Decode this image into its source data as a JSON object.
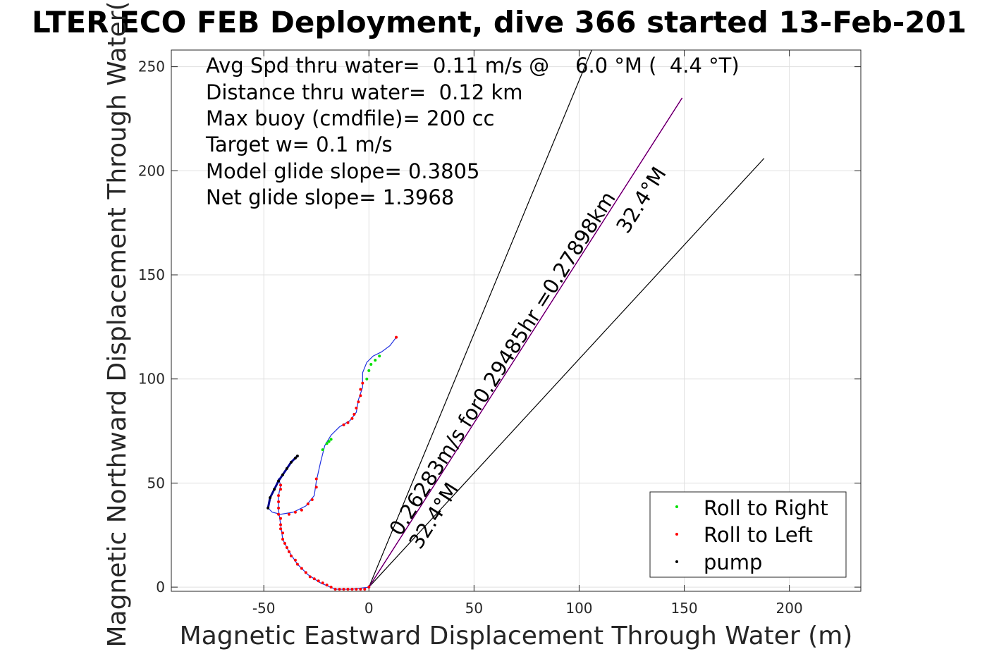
{
  "chart_data": {
    "type": "scatter",
    "title": "LTER ECO FEB Deployment, dive 366 started 13-Feb-201",
    "xlabel": "Magnetic Eastward Displacement Through Water (m)",
    "ylabel": "Magnetic Northward Displacement Through Water(",
    "xlim": [
      -94,
      234
    ],
    "ylim": [
      -2,
      258
    ],
    "xticks": [
      -50,
      0,
      50,
      100,
      150,
      200
    ],
    "yticks": [
      0,
      50,
      100,
      150,
      200,
      250
    ],
    "grid": true,
    "legend_position": "bottom-right",
    "annotations": [
      "Avg Spd thru water=  0.11 m/s @    6.0 °M (  4.4 °T)",
      "Distance thru water=  0.12 km",
      "Max buoy (cmdfile)= 200 cc",
      "Target w= 0.1 m/s",
      "Model glide slope= 0.3805",
      "Net glide slope= 1.3968"
    ],
    "rotated_labels": {
      "upper": "0.26283m/s for0.29485hr =0.27898km",
      "upper_heading": "32.4°M",
      "lower_heading": "32.4°M"
    },
    "reference_lines": {
      "origin": [
        0,
        0
      ],
      "heading_line_end": [
        149,
        235
      ],
      "left_bound_end": [
        106,
        258
      ],
      "right_bound_end": [
        188,
        206
      ]
    },
    "track": [
      [
        0,
        0
      ],
      [
        -8,
        -1
      ],
      [
        -16,
        -1
      ],
      [
        -23,
        2
      ],
      [
        -29,
        6
      ],
      [
        -34,
        11
      ],
      [
        -38,
        17
      ],
      [
        -41,
        23
      ],
      [
        -42,
        30
      ],
      [
        -43,
        37
      ],
      [
        -43,
        44
      ],
      [
        -42,
        49
      ],
      [
        -43,
        52
      ],
      [
        -45,
        47
      ],
      [
        -47,
        43
      ],
      [
        -48,
        38
      ],
      [
        -46,
        36
      ],
      [
        -42,
        35
      ],
      [
        -36,
        36
      ],
      [
        -30,
        39
      ],
      [
        -26,
        44
      ],
      [
        -25,
        51
      ],
      [
        -23,
        60
      ],
      [
        -21,
        68
      ],
      [
        -18,
        73
      ],
      [
        -14,
        77
      ],
      [
        -9,
        80
      ],
      [
        -6,
        84
      ],
      [
        -5,
        90
      ],
      [
        -3,
        96
      ],
      [
        -3,
        103
      ],
      [
        -1,
        108
      ],
      [
        2,
        111
      ],
      [
        6,
        113
      ],
      [
        10,
        116
      ],
      [
        13,
        120
      ]
    ],
    "pump_track": [
      [
        -48,
        38
      ],
      [
        -47,
        43
      ],
      [
        -45,
        47
      ],
      [
        -43,
        51
      ],
      [
        -41,
        54
      ],
      [
        -39,
        57
      ],
      [
        -37,
        60
      ],
      [
        -35,
        62
      ],
      [
        -34,
        63
      ]
    ],
    "series": [
      {
        "name": "Roll to Right",
        "color": "#00e000",
        "points": [
          [
            -22,
            66
          ],
          [
            -20,
            69
          ],
          [
            -18,
            71
          ],
          [
            -19,
            70
          ],
          [
            -1,
            100
          ],
          [
            0,
            104
          ],
          [
            1,
            107
          ],
          [
            3,
            109
          ],
          [
            5,
            111
          ]
        ]
      },
      {
        "name": "Roll to Left",
        "color": "#ff0000",
        "points": [
          [
            0,
            0
          ],
          [
            -2,
            -1
          ],
          [
            -4,
            -1
          ],
          [
            -6,
            -1
          ],
          [
            -8,
            -1
          ],
          [
            -10,
            -1
          ],
          [
            -12,
            -1
          ],
          [
            -14,
            -1
          ],
          [
            -16,
            -1
          ],
          [
            -18,
            0
          ],
          [
            -20,
            1
          ],
          [
            -22,
            2
          ],
          [
            -24,
            3
          ],
          [
            -26,
            4
          ],
          [
            -28,
            5
          ],
          [
            -30,
            7
          ],
          [
            -32,
            9
          ],
          [
            -34,
            11
          ],
          [
            -35,
            13
          ],
          [
            -37,
            15
          ],
          [
            -38,
            17
          ],
          [
            -39,
            19
          ],
          [
            -40,
            21
          ],
          [
            -41,
            23
          ],
          [
            -41,
            26
          ],
          [
            -42,
            28
          ],
          [
            -42,
            30
          ],
          [
            -42,
            33
          ],
          [
            -43,
            35
          ],
          [
            -43,
            38
          ],
          [
            -43,
            41
          ],
          [
            -43,
            44
          ],
          [
            -42,
            47
          ],
          [
            -42,
            49
          ],
          [
            -38,
            35
          ],
          [
            -35,
            36
          ],
          [
            -32,
            37
          ],
          [
            -29,
            40
          ],
          [
            -27,
            42
          ],
          [
            -25,
            48
          ],
          [
            -25,
            52
          ],
          [
            -12,
            78
          ],
          [
            -10,
            79
          ],
          [
            -8,
            81
          ],
          [
            -7,
            83
          ],
          [
            -6,
            86
          ],
          [
            -5,
            89
          ],
          [
            -4,
            92
          ],
          [
            -4,
            95
          ],
          [
            -3,
            98
          ],
          [
            13,
            120
          ]
        ]
      },
      {
        "name": "pump",
        "color": "#000000",
        "points": [
          [
            -48,
            38
          ],
          [
            -47,
            43
          ],
          [
            -45,
            47
          ],
          [
            -43,
            51
          ],
          [
            -41,
            54
          ],
          [
            -39,
            57
          ],
          [
            -37,
            60
          ],
          [
            -35,
            62
          ],
          [
            -34,
            63
          ]
        ]
      }
    ]
  }
}
